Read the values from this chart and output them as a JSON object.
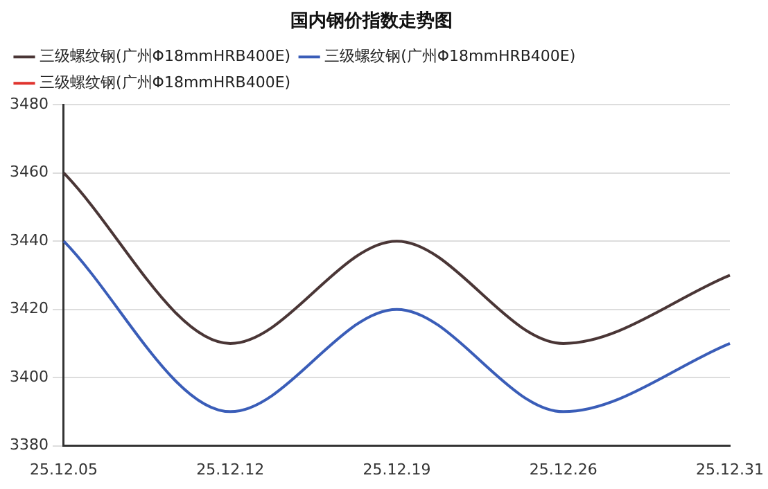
{
  "chart_data": {
    "type": "line",
    "title": "国内钢价指数走势图",
    "categories": [
      "25.12.05",
      "25.12.12",
      "25.12.19",
      "25.12.26",
      "25.12.31"
    ],
    "series": [
      {
        "name": "三级螺纹钢(广州Φ18mmHRB400E)",
        "color": "#4a3636",
        "values": [
          3460,
          3410,
          3440,
          3410,
          3430
        ]
      },
      {
        "name": "三级螺纹钢(广州Φ18mmHRB400E)",
        "color": "#3a5db8",
        "values": [
          3440,
          3390,
          3420,
          3390,
          3410
        ]
      },
      {
        "name": "三级螺纹钢(广州Φ18mmHRB400E)",
        "color": "#e0332e",
        "values": [
          null,
          null,
          null,
          null,
          null
        ]
      }
    ],
    "ylim": [
      3380,
      3480
    ],
    "yticks": [
      3380,
      3400,
      3420,
      3440,
      3460,
      3480
    ],
    "grid": "y",
    "legend": "top",
    "marker": "none",
    "line_style": "solid"
  }
}
